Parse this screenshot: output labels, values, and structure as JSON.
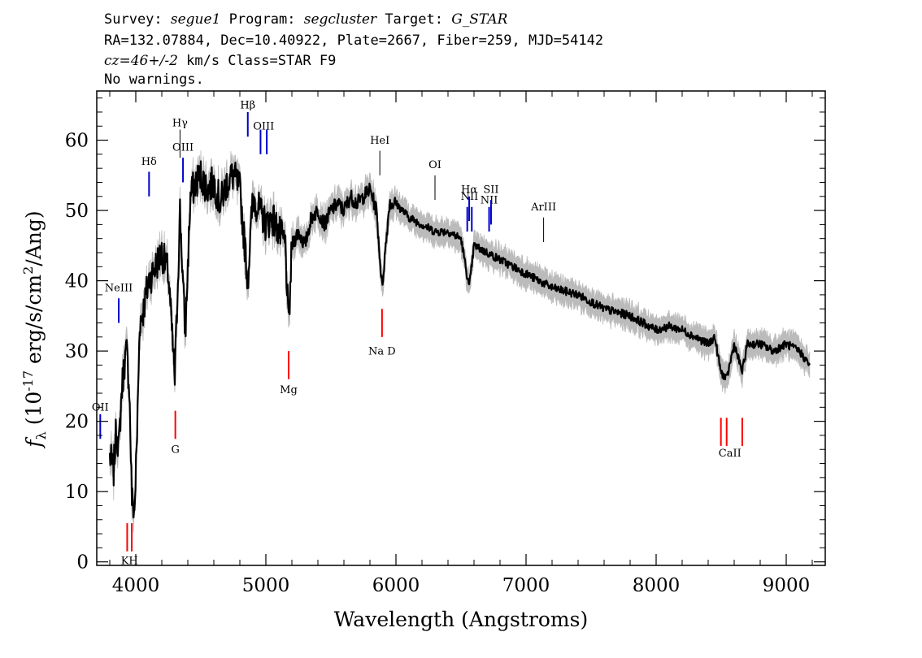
{
  "header": {
    "line1": {
      "survey_label": "Survey: ",
      "survey": "segue1",
      "program_label": " Program: ",
      "program": "segcluster",
      "target_label": " Target: ",
      "target": "G_STAR"
    },
    "line2": "RA=132.07884, Dec=10.40922, Plate=2667, Fiber=259, MJD=54142",
    "line3": {
      "cz": "cz=46+/-2",
      "rest": " km/s Class=STAR F9"
    },
    "line4": "No warnings."
  },
  "chart_data": {
    "type": "line",
    "xlabel": "Wavelength (Angstroms)",
    "ylabel": "f_λ (10^-17 erg/s/cm^2/Ang)",
    "xlim": [
      3700,
      9300
    ],
    "ylim": [
      -0.5,
      67
    ],
    "xticks": [
      4000,
      5000,
      6000,
      7000,
      8000,
      9000
    ],
    "yticks": [
      0,
      10,
      20,
      30,
      40,
      50,
      60
    ],
    "series": [
      {
        "role": "flux",
        "color": "#000000",
        "x": [
          3800,
          3830,
          3850,
          3870,
          3890,
          3910,
          3930,
          3950,
          3970,
          3990,
          4010,
          4030,
          4060,
          4100,
          4150,
          4200,
          4250,
          4300,
          4340,
          4380,
          4420,
          4460,
          4500,
          4550,
          4600,
          4650,
          4700,
          4750,
          4800,
          4861,
          4900,
          4950,
          5000,
          5050,
          5100,
          5150,
          5175,
          5200,
          5250,
          5300,
          5350,
          5400,
          5450,
          5500,
          5550,
          5600,
          5650,
          5700,
          5750,
          5800,
          5850,
          5893,
          5950,
          6000,
          6100,
          6200,
          6300,
          6400,
          6500,
          6563,
          6600,
          6700,
          6800,
          6900,
          7000,
          7100,
          7200,
          7300,
          7400,
          7500,
          7600,
          7700,
          7800,
          7900,
          8000,
          8100,
          8200,
          8300,
          8400,
          8450,
          8498,
          8542,
          8600,
          8662,
          8700,
          8800,
          8900,
          9000,
          9100,
          9180
        ],
        "y": [
          15,
          13,
          19,
          16,
          24,
          28,
          30,
          25,
          9,
          7,
          18,
          34,
          36,
          40,
          42,
          44,
          41,
          26,
          50,
          32,
          52,
          54,
          55,
          53,
          54,
          51,
          54,
          55,
          53,
          40,
          52,
          50,
          48,
          49,
          47,
          45,
          33,
          45,
          47,
          45,
          49,
          50,
          48,
          50,
          51,
          50,
          52,
          51,
          52,
          53,
          50,
          39,
          51,
          51,
          49,
          48,
          47,
          47,
          46,
          39,
          45,
          44,
          43,
          42,
          41,
          40,
          39,
          38.5,
          38,
          37,
          36,
          35.5,
          35,
          34,
          33,
          33.5,
          33,
          32,
          31,
          32,
          27,
          26,
          31,
          27,
          31,
          31,
          30,
          31,
          30,
          28
        ]
      },
      {
        "role": "error band",
        "color": "#bbbbbb",
        "half_width": 1.6
      }
    ],
    "annotations": [
      {
        "label": "KH",
        "color": "#ff0000",
        "x": [
          3934,
          3969
        ],
        "y0": 1.5,
        "y1": 5.5,
        "label_y": -0.3
      },
      {
        "label": "G",
        "color": "#ff0000",
        "x": [
          4304
        ],
        "y0": 17.5,
        "y1": 21.5,
        "label_y": 15.5
      },
      {
        "label": "Mg",
        "color": "#ff0000",
        "x": [
          5175
        ],
        "y0": 26,
        "y1": 30,
        "label_y": 24
      },
      {
        "label": "Na D",
        "color": "#ff0000",
        "x": [
          5893
        ],
        "y0": 32,
        "y1": 36,
        "label_y": 29.5
      },
      {
        "label": "CaII",
        "color": "#ff0000",
        "x": [
          8498,
          8542,
          8662
        ],
        "y0": 16.5,
        "y1": 20.5,
        "label_y": 15
      },
      {
        "label": "OII",
        "color": "#0000cc",
        "x": [
          3727
        ],
        "y0": 17.5,
        "y1": 21,
        "label_y": 21.5
      },
      {
        "label": "NeIII",
        "color": "#0000cc",
        "x": [
          3869
        ],
        "y0": 34,
        "y1": 37.5,
        "label_y": 38.5
      },
      {
        "label": "Hδ",
        "color": "#0000cc",
        "x": [
          4102
        ],
        "y0": 52,
        "y1": 55.5,
        "label_y": 56.5
      },
      {
        "label": "Hγ",
        "color": "#000000",
        "x": [
          4340
        ],
        "y0": 57.5,
        "y1": 61.5,
        "label_y": 62
      },
      {
        "label": "OIII",
        "color": "#0000cc",
        "x": [
          4363
        ],
        "y0": 54,
        "y1": 57.5,
        "label_y": 58.5
      },
      {
        "label": "Hβ",
        "color": "#0000cc",
        "x": [
          4861
        ],
        "y0": 60.5,
        "y1": 64,
        "label_y": 64.5
      },
      {
        "label": "OIII",
        "color": "#0000cc",
        "x": [
          4959,
          5007
        ],
        "y0": 58,
        "y1": 61.5,
        "label_y": 61.5
      },
      {
        "label": "HeI",
        "color": "#000000",
        "x": [
          5876
        ],
        "y0": 55,
        "y1": 58.5,
        "label_y": 59.5
      },
      {
        "label": "OI",
        "color": "#000000",
        "x": [
          6300
        ],
        "y0": 51.5,
        "y1": 55,
        "label_y": 56
      },
      {
        "label": "NII",
        "color": "#0000cc",
        "x": [
          6548,
          6583
        ],
        "y0": 47,
        "y1": 50.5,
        "label_y": 51.5
      },
      {
        "label": "Hα",
        "color": "#0000cc",
        "x": [
          6563
        ],
        "y0": 48.5,
        "y1": 52,
        "label_y": 52.5
      },
      {
        "label": "NII",
        "color": "#0000cc",
        "x": [
          6716
        ],
        "y0": 47,
        "y1": 50.5,
        "label_y": 51
      },
      {
        "label": "SII",
        "color": "#0000cc",
        "x": [
          6731
        ],
        "y0": 48,
        "y1": 51.5,
        "label_y": 52.5
      },
      {
        "label": "ArIII",
        "color": "#000000",
        "x": [
          7135
        ],
        "y0": 45.5,
        "y1": 49,
        "label_y": 50
      }
    ]
  }
}
